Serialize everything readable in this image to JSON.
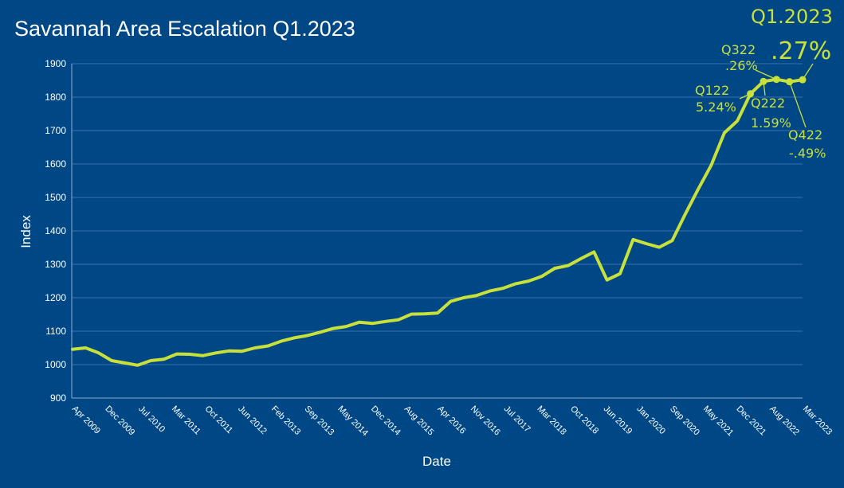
{
  "chart_data": {
    "type": "line",
    "title": "Savannah Area Escalation Q1.2023",
    "xlabel": "Date",
    "ylabel": "Index",
    "ylim": [
      900,
      1900
    ],
    "yticks": [
      900,
      1000,
      1100,
      1200,
      1300,
      1400,
      1500,
      1600,
      1700,
      1800,
      1900
    ],
    "grid": true,
    "tick_labels": [
      "Apr 2009",
      "Dec 2009",
      "Jul 2010",
      "Mar 2011",
      "Oct 2011",
      "Jun 2012",
      "Feb 2013",
      "Sep 2013",
      "May 2014",
      "Dec 2014",
      "Aug 2015",
      "Apr 2016",
      "Nov 2016",
      "Jul 2017",
      "Mar 2018",
      "Oct 2018",
      "Jun 2019",
      "Jan 2020",
      "Sep 2020",
      "May 2021",
      "Dec 2021",
      "Aug 2022",
      "Mar 2023"
    ],
    "values": [
      1046,
      1050,
      1035,
      1012,
      1005,
      998,
      1012,
      1016,
      1032,
      1031,
      1027,
      1035,
      1041,
      1040,
      1050,
      1056,
      1070,
      1080,
      1087,
      1097,
      1108,
      1114,
      1127,
      1123,
      1129,
      1134,
      1151,
      1152,
      1154,
      1189,
      1200,
      1207,
      1220,
      1228,
      1242,
      1250,
      1264,
      1288,
      1296,
      1317,
      1337,
      1253,
      1272,
      1374,
      1362,
      1351,
      1371,
      1450,
      1525,
      1597,
      1693,
      1729,
      1810,
      1847,
      1853,
      1846,
      1852
    ],
    "color": "#c8e03a",
    "markers": [
      {
        "index": 52,
        "label": "Q122",
        "sub": "5.24%"
      },
      {
        "index": 53,
        "label": "Q222",
        "sub": "1.59%"
      },
      {
        "index": 54,
        "label": "Q322",
        "sub": ".26%"
      },
      {
        "index": 55,
        "label": "Q422",
        "sub": "-.49%"
      },
      {
        "index": 56,
        "label": "Q1.2023",
        "sub": ".27%"
      }
    ]
  }
}
